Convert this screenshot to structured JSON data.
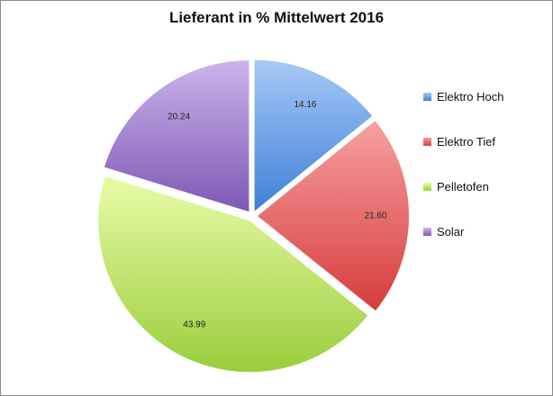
{
  "chart_data": {
    "type": "pie",
    "title": "Lieferant in % Mittelwert 2016",
    "categories": [
      "Elektro Hoch",
      "Elektro Tief",
      "Pelletofen",
      "Solar"
    ],
    "values": [
      14.16,
      21.6,
      43.99,
      20.24
    ],
    "value_labels": [
      "14.16",
      "21.60",
      "43.99",
      "20.24"
    ],
    "exploded": true,
    "legend_position": "right",
    "colors": [
      {
        "light": "#a7c9f5",
        "dark": "#3f7fd8"
      },
      {
        "light": "#f7a0a0",
        "dark": "#d63c3c"
      },
      {
        "light": "#e8fba8",
        "dark": "#9acd3c"
      },
      {
        "light": "#cbb3eb",
        "dark": "#7e58b4"
      }
    ]
  }
}
